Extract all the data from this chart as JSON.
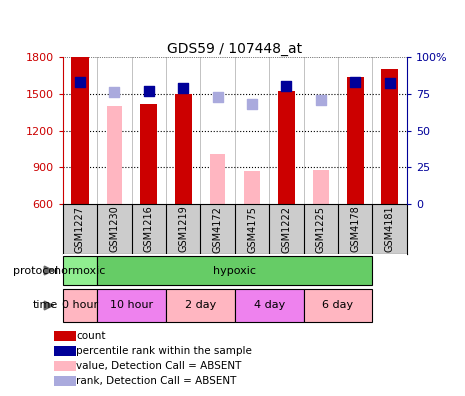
{
  "title": "GDS59 / 107448_at",
  "samples": [
    "GSM1227",
    "GSM1230",
    "GSM1216",
    "GSM1219",
    "GSM4172",
    "GSM4175",
    "GSM1222",
    "GSM1225",
    "GSM4178",
    "GSM4181"
  ],
  "count_values": [
    1800,
    null,
    1420,
    1500,
    null,
    null,
    1520,
    null,
    1640,
    1700
  ],
  "pink_bar_values": [
    null,
    1400,
    null,
    null,
    1010,
    870,
    null,
    880,
    null,
    null
  ],
  "blue_square_values": [
    83,
    null,
    77,
    79,
    null,
    null,
    80,
    null,
    83,
    82
  ],
  "light_blue_square_values": [
    null,
    76,
    null,
    null,
    73,
    68,
    null,
    71,
    null,
    null
  ],
  "ylim_left": [
    600,
    1800
  ],
  "ylim_right": [
    0,
    100
  ],
  "yticks_left": [
    600,
    900,
    1200,
    1500,
    1800
  ],
  "yticks_right": [
    0,
    25,
    50,
    75,
    100
  ],
  "protocol_groups": [
    {
      "label": "normoxic",
      "start": 0,
      "end": 1,
      "color": "#90EE90"
    },
    {
      "label": "hypoxic",
      "start": 1,
      "end": 9,
      "color": "#66CC66"
    }
  ],
  "time_groups": [
    {
      "label": "0 hour",
      "start": 0,
      "end": 1,
      "color": "#FFB6C1"
    },
    {
      "label": "10 hour",
      "start": 1,
      "end": 3,
      "color": "#EE82EE"
    },
    {
      "label": "2 day",
      "start": 3,
      "end": 5,
      "color": "#FFB6C1"
    },
    {
      "label": "4 day",
      "start": 5,
      "end": 7,
      "color": "#EE82EE"
    },
    {
      "label": "6 day",
      "start": 7,
      "end": 9,
      "color": "#FFB6C1"
    }
  ],
  "legend_items": [
    {
      "label": "count",
      "color": "#CC0000"
    },
    {
      "label": "percentile rank within the sample",
      "color": "#000099"
    },
    {
      "label": "value, Detection Call = ABSENT",
      "color": "#FFB6C1"
    },
    {
      "label": "rank, Detection Call = ABSENT",
      "color": "#AAAADD"
    }
  ],
  "bar_width": 0.5,
  "red_color": "#CC0000",
  "pink_color": "#FFB6C1",
  "blue_color": "#000099",
  "light_blue_color": "#AAAADD",
  "bg_color": "#FFFFFF",
  "sample_bg_color": "#CCCCCC",
  "grid_line_color": "#000000",
  "grid_line_style": "dotted"
}
